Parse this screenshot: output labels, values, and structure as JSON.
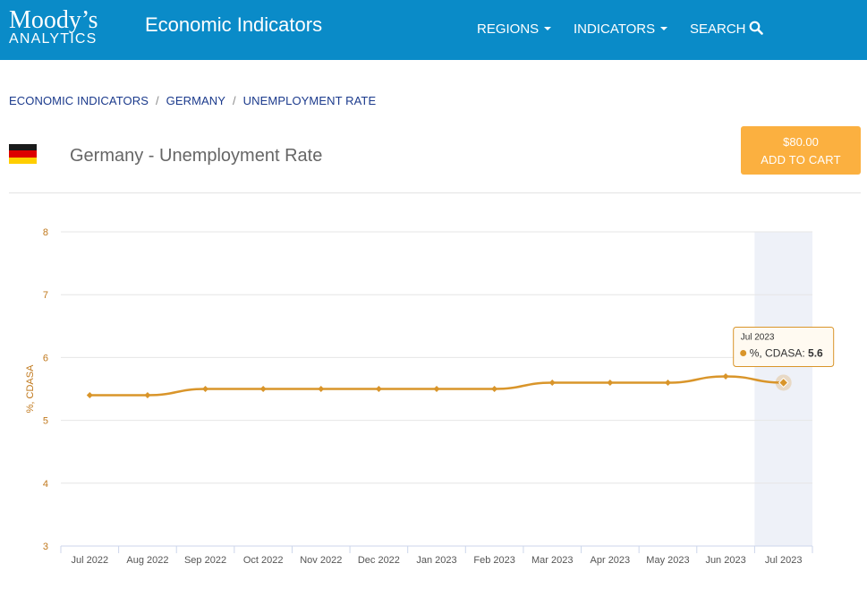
{
  "header": {
    "logo_top": "Moody’s",
    "logo_bottom": "ANALYTICS",
    "title": "Economic Indicators",
    "nav": {
      "regions": "REGIONS",
      "indicators": "INDICATORS",
      "search": "SEARCH"
    }
  },
  "breadcrumb": [
    "ECONOMIC INDICATORS",
    "GERMANY",
    "UNEMPLOYMENT RATE"
  ],
  "page": {
    "title": "Germany - Unemployment Rate"
  },
  "cart": {
    "price": "$80.00",
    "label": "ADD TO CART"
  },
  "colors": {
    "header_bg": "#0a8bc8",
    "accent": "#fbb040",
    "series": "#d9952a",
    "breadcrumb": "#1b3a8c"
  },
  "icons": {
    "flag": "germany-flag-icon",
    "search": "search-icon",
    "dropdown": "caret-down-icon"
  },
  "chart_data": {
    "type": "line",
    "ylabel": "%, CDASA",
    "ylim": [
      3,
      8
    ],
    "yticks": [
      3,
      4,
      5,
      6,
      7,
      8
    ],
    "categories": [
      "Jul 2022",
      "Aug 2022",
      "Sep 2022",
      "Oct 2022",
      "Nov 2022",
      "Dec 2022",
      "Jan 2023",
      "Feb 2023",
      "Mar 2023",
      "Apr 2023",
      "May 2023",
      "Jun 2023",
      "Jul 2023"
    ],
    "series": [
      {
        "name": "%, CDASA",
        "values": [
          5.4,
          5.4,
          5.5,
          5.5,
          5.5,
          5.5,
          5.5,
          5.5,
          5.6,
          5.6,
          5.6,
          5.7,
          5.6
        ]
      }
    ],
    "grid": true,
    "highlight_index": 12,
    "tooltip": {
      "date": "Jul 2023",
      "label": "%, CDASA:",
      "value": "5.6"
    }
  }
}
